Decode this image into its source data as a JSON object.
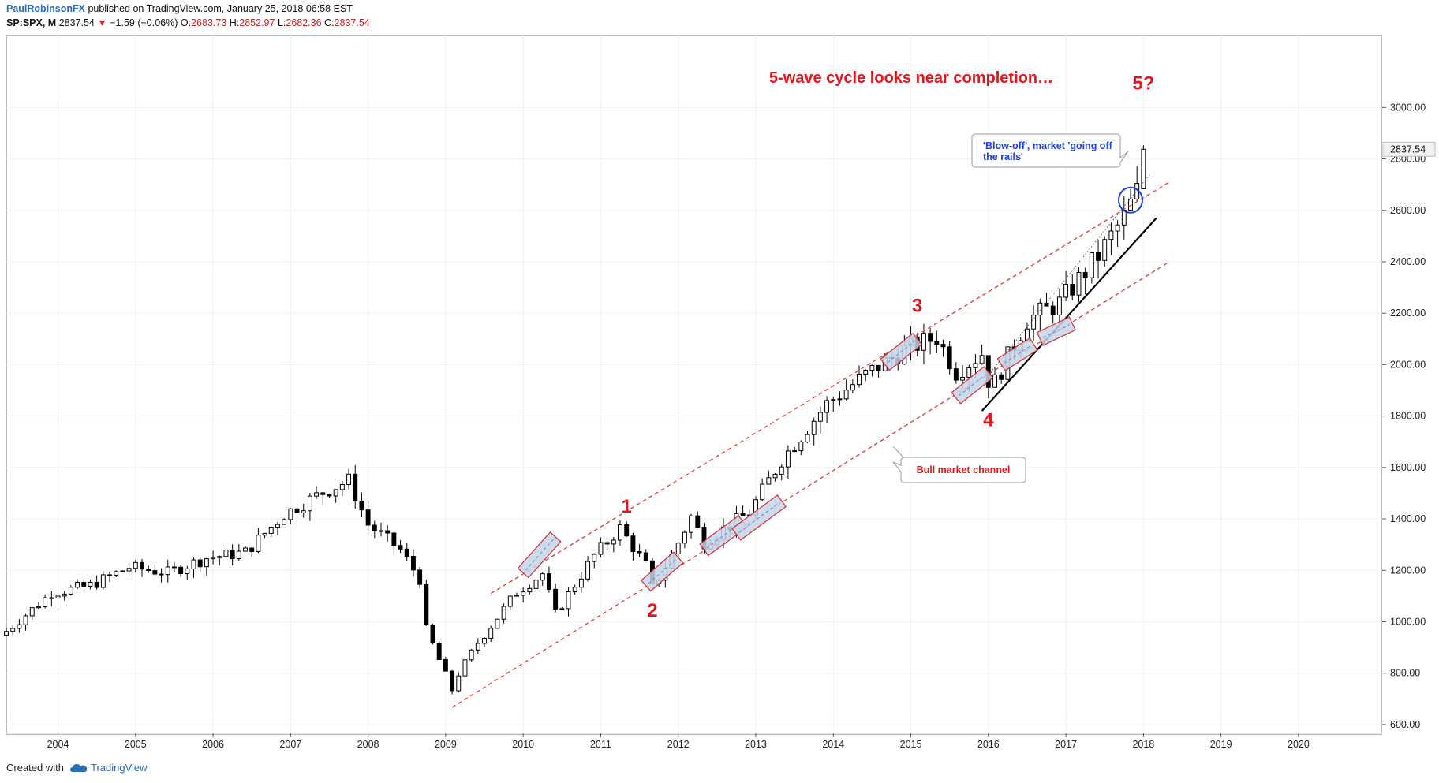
{
  "header": {
    "author": "PaulRobinsonFX",
    "published": "published on TradingView.com, January 25, 2018 06:58 EST"
  },
  "ohlc": {
    "symbol": "SP:SPX, M",
    "last": "2837.54",
    "change_arrow": "▼",
    "change": "−1.59 (−0.06%)",
    "open_label": "O:",
    "open": "2683.73",
    "high_label": "H:",
    "high": "2852.97",
    "low_label": "L:",
    "low": "2682.36",
    "close_label": "C:",
    "close": "2837.54"
  },
  "footer": {
    "created_with": "Created with",
    "brand": "TradingView",
    "brand_icon": "tradingview-cloud-icon"
  },
  "colors": {
    "up": "#ffffff",
    "down": "#000000",
    "wick": "#000000",
    "annotation_red": "#e8141c",
    "channel_red": "#e53935",
    "highlight_fill": "#c6d5ea",
    "highlight_stroke": "#d32f2f",
    "circle_blue": "#1e3fd8",
    "grid": "#f0f0f0",
    "price_tag_bg": "#f2f2f2"
  },
  "chart_data": {
    "type": "candlestick",
    "symbol": "SP:SPX",
    "interval": "M",
    "title": "",
    "xlabel": "",
    "ylabel": "",
    "x_ticks": [
      "2004",
      "2005",
      "2006",
      "2007",
      "2008",
      "2009",
      "2010",
      "2011",
      "2012",
      "2013",
      "2014",
      "2015",
      "2016",
      "2017",
      "2018",
      "2019",
      "2020"
    ],
    "y_ticks": [
      "600.00",
      "800.00",
      "1000.00",
      "1200.00",
      "1400.00",
      "1600.00",
      "1800.00",
      "2000.00",
      "2200.00",
      "2400.00",
      "2600.00",
      "2800.00",
      "3000.00"
    ],
    "ylim": [
      560,
      3280
    ],
    "xlim": [
      "2003-05",
      "2020-12"
    ],
    "last_price_label": "2837.54",
    "monthly_close_anchors": [
      [
        "2003-05",
        963
      ],
      [
        "2003-12",
        1112
      ],
      [
        "2004-06",
        1141
      ],
      [
        "2004-12",
        1212
      ],
      [
        "2005-06",
        1191
      ],
      [
        "2005-12",
        1248
      ],
      [
        "2006-06",
        1270
      ],
      [
        "2006-12",
        1418
      ],
      [
        "2007-06",
        1503
      ],
      [
        "2007-10",
        1549
      ],
      [
        "2008-01",
        1378
      ],
      [
        "2008-06",
        1280
      ],
      [
        "2008-09",
        1166
      ],
      [
        "2008-10",
        969
      ],
      [
        "2009-02",
        735
      ],
      [
        "2009-03",
        798
      ],
      [
        "2009-06",
        919
      ],
      [
        "2009-12",
        1115
      ],
      [
        "2010-04",
        1187
      ],
      [
        "2010-06",
        1031
      ],
      [
        "2010-12",
        1258
      ],
      [
        "2011-04",
        1364
      ],
      [
        "2011-08",
        1219
      ],
      [
        "2011-09",
        1131
      ],
      [
        "2011-12",
        1258
      ],
      [
        "2012-03",
        1408
      ],
      [
        "2012-05",
        1310
      ],
      [
        "2012-12",
        1426
      ],
      [
        "2013-05",
        1631
      ],
      [
        "2013-12",
        1848
      ],
      [
        "2014-06",
        1960
      ],
      [
        "2014-12",
        2059
      ],
      [
        "2015-05",
        2107
      ],
      [
        "2015-08",
        1972
      ],
      [
        "2015-12",
        2044
      ],
      [
        "2016-01",
        1940
      ],
      [
        "2016-02",
        1932
      ],
      [
        "2016-07",
        2174
      ],
      [
        "2016-12",
        2239
      ],
      [
        "2017-06",
        2423
      ],
      [
        "2017-10",
        2575
      ],
      [
        "2017-12",
        2674
      ],
      [
        "2018-01",
        2837.54
      ]
    ],
    "annotations": [
      {
        "text": "5-wave cycle looks near completion…",
        "kind": "title-text"
      },
      {
        "text": "5?",
        "date": "2018-01",
        "price": 3070
      },
      {
        "text": "1",
        "date": "2011-05",
        "price": 1425
      },
      {
        "text": "2",
        "date": "2011-09",
        "price": 1020
      },
      {
        "text": "3",
        "date": "2015-02",
        "price": 2205
      },
      {
        "text": "4",
        "date": "2016-01",
        "price": 1760
      }
    ],
    "callouts": [
      {
        "text": "'Blow-off', market 'going off the rails'",
        "color": "#1e3fd8"
      },
      {
        "text": "Bull market channel",
        "color": "#e8141c"
      }
    ],
    "channel_lines": [
      {
        "style": "red-dashed",
        "from": [
          "2009-08",
          1110
        ],
        "to": [
          "2018-05",
          2710
        ]
      },
      {
        "style": "red-dashed",
        "from": [
          "2009-02",
          667
        ],
        "to": [
          "2018-05",
          2400
        ]
      },
      {
        "style": "black-solid",
        "from": [
          "2015-12",
          1820
        ],
        "to": [
          "2018-03",
          2570
        ]
      },
      {
        "style": "gray-dotted",
        "from": [
          "2016-01",
          1960
        ],
        "to": [
          "2018-02",
          2740
        ]
      }
    ],
    "highlight_zones": [
      {
        "from": [
          "2010-01",
          1190
        ],
        "to": [
          "2010-06",
          1330
        ]
      },
      {
        "from": [
          "2011-08",
          1140
        ],
        "to": [
          "2012-01",
          1250
        ]
      },
      {
        "from": [
          "2012-05",
          1280
        ],
        "to": [
          "2012-11",
          1390
        ]
      },
      {
        "from": [
          "2012-10",
          1340
        ],
        "to": [
          "2013-05",
          1470
        ]
      },
      {
        "from": [
          "2014-09",
          2000
        ],
        "to": [
          "2015-02",
          2100
        ]
      },
      {
        "from": [
          "2015-08",
          1870
        ],
        "to": [
          "2016-01",
          1970
        ]
      },
      {
        "from": [
          "2016-03",
          2000
        ],
        "to": [
          "2016-08",
          2080
        ]
      },
      {
        "from": [
          "2016-09",
          2100
        ],
        "to": [
          "2017-02",
          2160
        ]
      }
    ],
    "blowoff_circle": {
      "date": "2017-11",
      "price": 2640
    }
  }
}
